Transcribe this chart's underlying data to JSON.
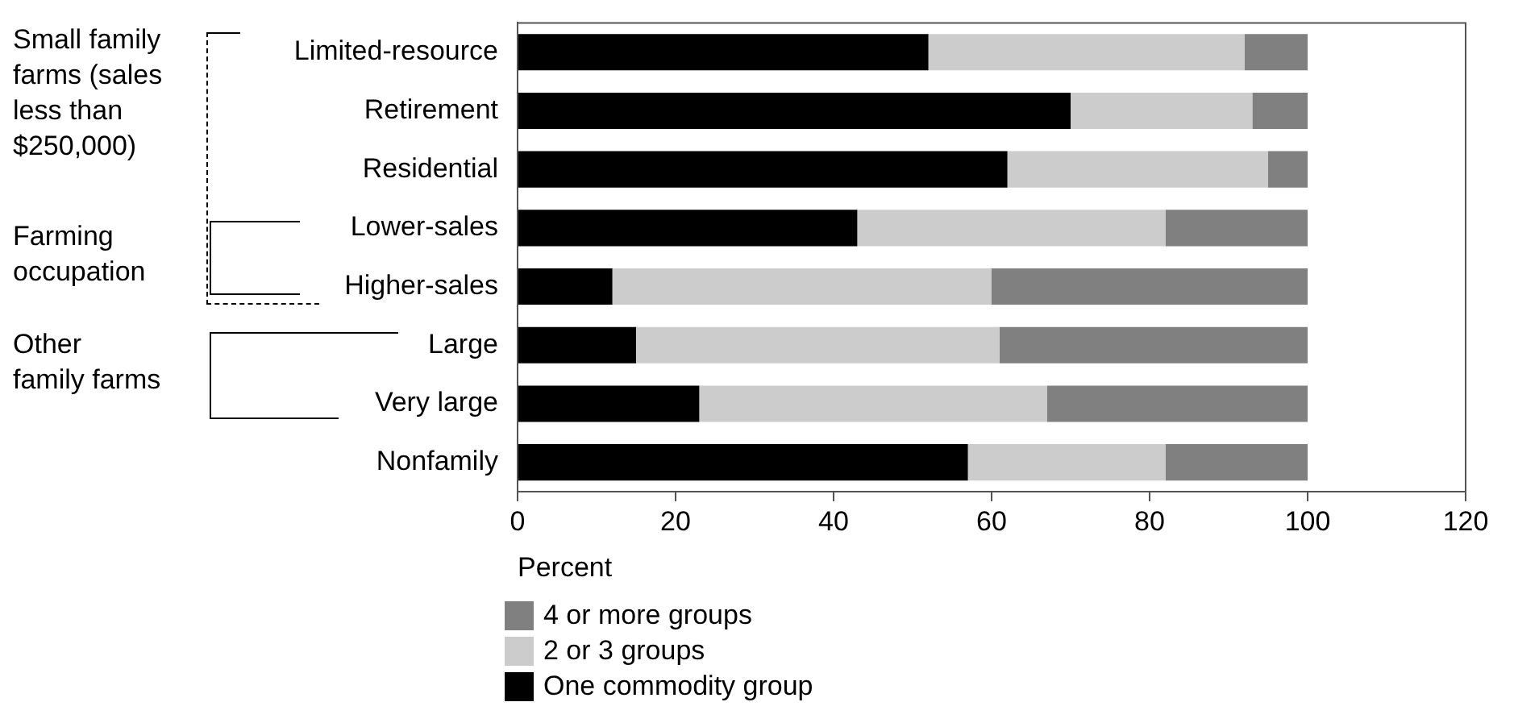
{
  "chart_data": {
    "type": "bar",
    "orientation": "horizontal",
    "stacked": true,
    "categories": [
      "Limited-resource",
      "Retirement",
      "Residential",
      "Lower-sales",
      "Higher-sales",
      "Large",
      "Very large",
      "Nonfamily"
    ],
    "series": [
      {
        "name": "One commodity group",
        "color": "#000000",
        "values": [
          52,
          70,
          62,
          43,
          12,
          15,
          23,
          57
        ]
      },
      {
        "name": "2 or 3 groups",
        "color": "#cccccc",
        "values": [
          40,
          23,
          33,
          39,
          48,
          46,
          44,
          25
        ]
      },
      {
        "name": "4 or more groups",
        "color": "#808080",
        "values": [
          8,
          7,
          5,
          18,
          40,
          39,
          33,
          18
        ]
      }
    ],
    "xlim": [
      0,
      120
    ],
    "xticks": [
      0,
      20,
      40,
      60,
      80,
      100,
      120
    ],
    "xlabel": "Percent",
    "legend": "bottom",
    "grid": false,
    "annotations": [
      "Small family\nfarms (sales\nless than\n$250,000)",
      "Farming\noccupation",
      "Other\nfamily farms"
    ]
  }
}
